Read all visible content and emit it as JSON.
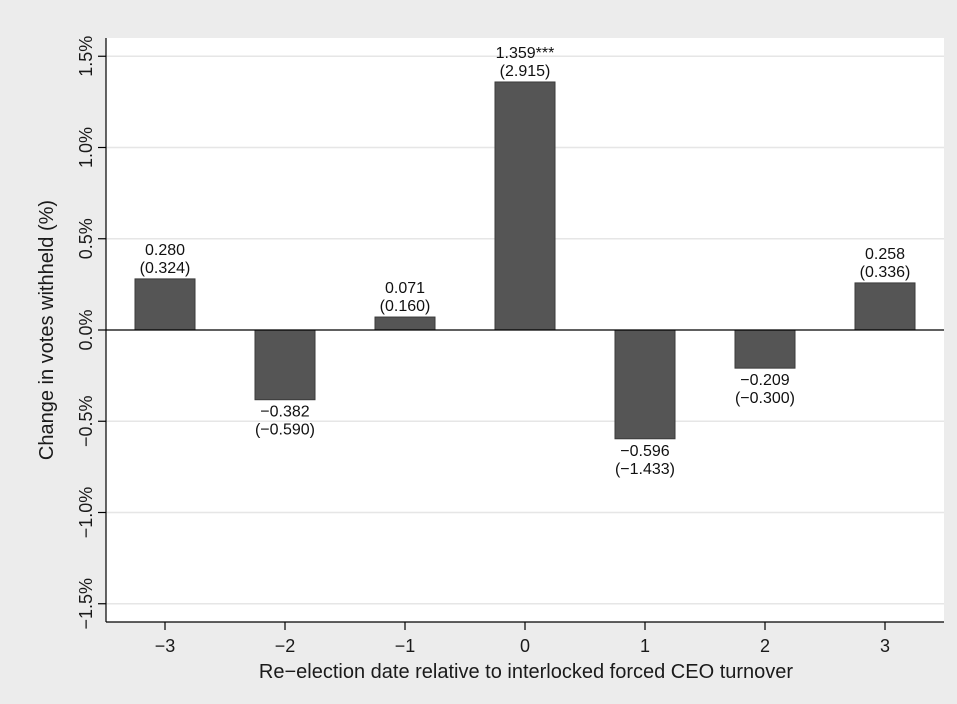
{
  "chart_data": {
    "type": "bar",
    "title": "",
    "xlabel": "Re−election date relative to interlocked forced CEO turnover",
    "ylabel": "Change in votes withheld (%)",
    "categories": [
      "−3",
      "−2",
      "−1",
      "0",
      "1",
      "2",
      "3"
    ],
    "values": [
      0.28,
      -0.382,
      0.071,
      1.359,
      -0.596,
      -0.209,
      0.258
    ],
    "value_labels": [
      "0.280",
      "−0.382",
      "0.071",
      "1.359***",
      "−0.596",
      "−0.209",
      "0.258"
    ],
    "stat_labels": [
      "(0.324)",
      "(−0.590)",
      "(0.160)",
      "(2.915)",
      "(−1.433)",
      "(−0.300)",
      "(0.336)"
    ],
    "ylim": [
      -1.6,
      1.6
    ],
    "y_ticks": [
      -1.5,
      -1.0,
      -0.5,
      0.0,
      0.5,
      1.0,
      1.5
    ],
    "y_tick_labels": [
      "−1.5%",
      "−1.0%",
      "−0.5%",
      "0.0%",
      "0.5%",
      "1.0%",
      "1.5%"
    ],
    "grid": true,
    "legend": "none",
    "colors": {
      "bar": "#555555",
      "bar_edge": "#3a3a3a",
      "plot_bg": "#ffffff",
      "page_bg": "#ececec",
      "grid": "#e6e6e6"
    }
  }
}
